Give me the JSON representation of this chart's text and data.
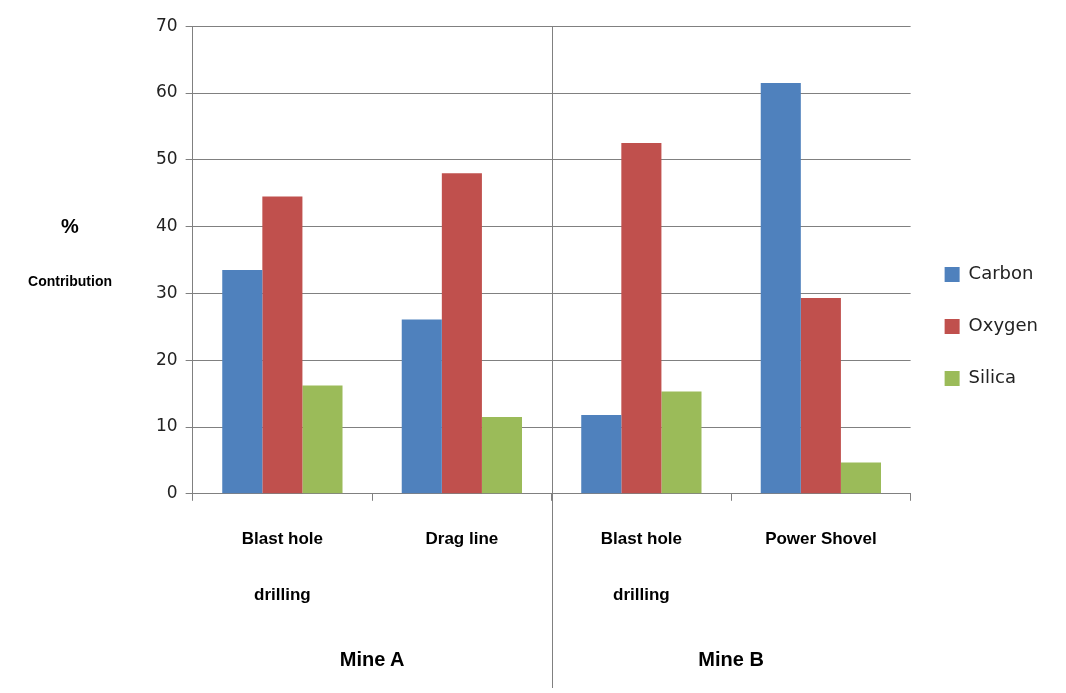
{
  "chart_data": {
    "type": "bar",
    "ylabel": "% Contribution",
    "categories": [
      "Blast hole drilling",
      "Drag line",
      "Blast hole drilling",
      "Power Shovel"
    ],
    "series": [
      {
        "name": "Carbon",
        "color": "#4f81bd",
        "values": [
          33.5,
          26.1,
          11.8,
          61.5
        ]
      },
      {
        "name": "Oxygen",
        "color": "#c0504d",
        "values": [
          44.5,
          48.0,
          52.5,
          29.3
        ]
      },
      {
        "name": "Silica",
        "color": "#9bbb59",
        "values": [
          16.2,
          11.5,
          15.3,
          4.7
        ]
      }
    ],
    "ylim": [
      0,
      70
    ],
    "yticks": [
      0,
      10,
      20,
      30,
      40,
      50,
      60,
      70
    ],
    "grid": "y",
    "legend": "right",
    "annotations": [
      "Mine A",
      "Mine B"
    ]
  }
}
